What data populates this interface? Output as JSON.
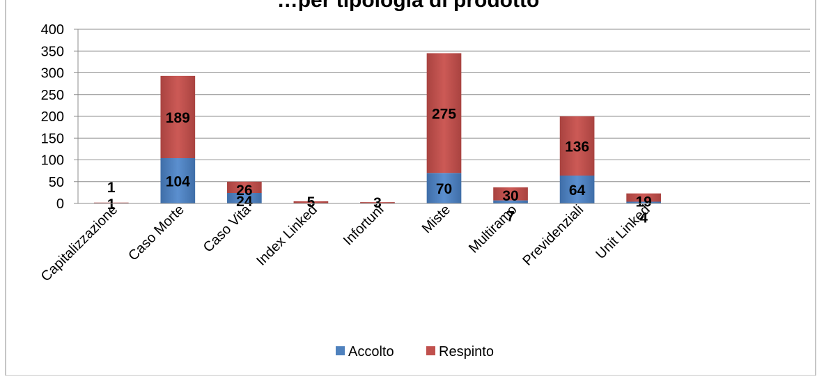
{
  "chart_data": {
    "type": "bar",
    "stacked": true,
    "title": "…per tipologia di prodotto",
    "categories": [
      "Capitalizzazione",
      "Caso Morte",
      "Caso Vita",
      "Index Linked",
      "Infortuni",
      "Miste",
      "Multiramo",
      "Previdenziali",
      "Unit Linked"
    ],
    "series": [
      {
        "name": "Accolto",
        "values": [
          1,
          104,
          24,
          0,
          0,
          70,
          7,
          64,
          4
        ]
      },
      {
        "name": "Respinto",
        "values": [
          1,
          189,
          26,
          5,
          3,
          275,
          30,
          136,
          19
        ]
      }
    ],
    "labels": {
      "Accolto": [
        "1",
        "104",
        "24",
        "",
        "",
        "70",
        "7",
        "64",
        "4"
      ],
      "Respinto": [
        "1",
        "189",
        "26",
        "5",
        "3",
        "275",
        "30",
        "136",
        "19"
      ]
    },
    "yticks": [
      "0",
      "50",
      "100",
      "150",
      "200",
      "250",
      "300",
      "350",
      "400"
    ],
    "ylim": [
      0,
      400
    ],
    "grid": true,
    "legend": "bottom",
    "colors": {
      "Accolto": "#4f81bd",
      "Respinto": "#c0504d"
    }
  }
}
